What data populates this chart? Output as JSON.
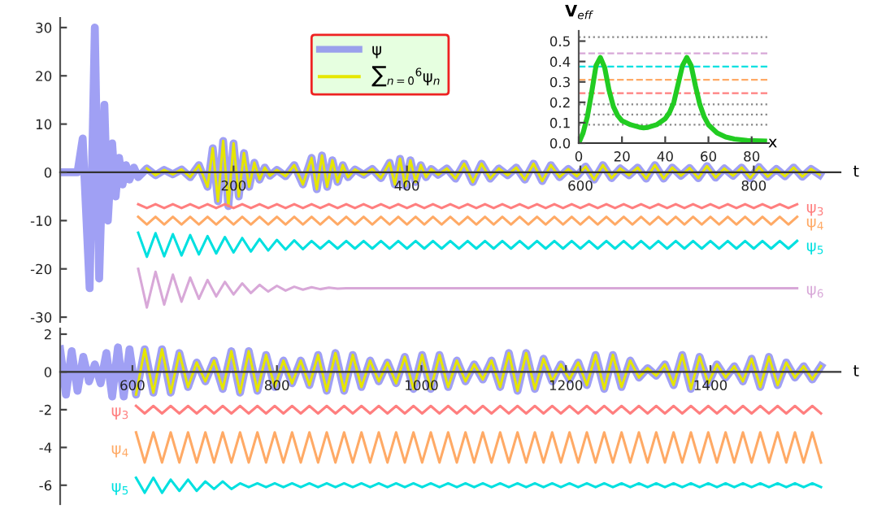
{
  "chart_data": [
    {
      "type": "line",
      "xlabel": "t",
      "xlim": [
        0,
        900
      ],
      "ylim": [
        -31,
        32
      ],
      "xticks": [
        200,
        400,
        600,
        800
      ],
      "yticks": [
        -30,
        -20,
        -10,
        0,
        10,
        20,
        30
      ],
      "legend": "top",
      "series": [
        {
          "name": "ψ",
          "color": "#8080f0",
          "x": [
            0,
            20,
            26,
            34,
            40,
            45,
            51,
            55,
            60,
            64,
            68,
            72,
            76,
            80,
            85,
            90,
            100,
            110,
            120,
            130,
            140,
            150,
            160,
            170,
            176,
            182,
            188,
            194,
            200,
            206,
            212,
            218,
            224,
            230,
            236,
            242,
            250,
            260,
            270,
            280,
            290,
            296,
            302,
            308,
            314,
            320,
            326,
            332,
            340,
            350,
            360,
            370,
            380,
            386,
            392,
            398,
            404,
            410,
            416,
            422,
            428,
            436,
            446,
            456,
            466,
            476,
            486,
            496,
            506,
            516,
            526,
            536,
            546,
            556,
            566,
            576,
            586,
            596,
            606,
            616,
            626,
            636,
            646,
            656,
            666,
            676,
            686,
            696,
            706,
            716,
            726,
            736,
            746,
            756,
            766,
            776,
            786,
            796,
            806,
            816,
            826,
            836,
            846,
            856,
            866,
            876
          ],
          "values": [
            0,
            0,
            7,
            -24,
            30,
            -22,
            14,
            -10,
            6,
            -5,
            3,
            -2.5,
            1.5,
            -1.5,
            1,
            -1,
            0.8,
            -0.6,
            0.5,
            -0.4,
            0.6,
            -1,
            1.5,
            -3,
            5,
            -6,
            6.5,
            -7,
            6,
            -5,
            4,
            -3,
            2,
            -1.5,
            1,
            -0.7,
            0.5,
            -0.8,
            1.5,
            -2.5,
            3,
            -3.5,
            3.5,
            -3,
            2.5,
            -2,
            1.5,
            -1,
            0.6,
            -0.5,
            0.7,
            -1.2,
            2,
            -2.5,
            2.8,
            -2.8,
            2.5,
            -2,
            1.5,
            -1,
            0.7,
            -0.5,
            0.8,
            -1.3,
            1.8,
            -2,
            1.8,
            -1.3,
            0.8,
            -0.6,
            1,
            -1.5,
            1.8,
            -1.8,
            1.5,
            -1,
            0.7,
            -0.8,
            1.2,
            -1.5,
            1.5,
            -1.2,
            0.8,
            -0.6,
            1,
            -1.3,
            1.5,
            -1.3,
            1,
            -0.7,
            0.9,
            -1.2,
            1.3,
            -1.1,
            0.8,
            -0.7,
            1,
            -1.2,
            1.1,
            -0.9,
            0.7,
            -0.8,
            1,
            -0.9,
            0.7,
            -0.5
          ]
        },
        {
          "name": "∑$_{n=0}$$^{6}$ψ$_{n}$",
          "color": "#e6e600",
          "x": [
            100,
            110,
            120,
            130,
            140,
            150,
            160,
            170,
            176,
            182,
            188,
            194,
            200,
            206,
            212,
            218,
            224,
            230,
            236,
            242,
            250,
            260,
            270,
            280,
            290,
            296,
            302,
            308,
            314,
            320,
            326,
            332,
            340,
            350,
            360,
            370,
            380,
            386,
            392,
            398,
            404,
            410,
            416,
            422,
            428,
            436,
            446,
            456,
            466,
            476,
            486,
            496,
            506,
            516,
            526,
            536,
            546,
            556,
            566,
            576,
            586,
            596,
            606,
            616,
            626,
            636,
            646,
            656,
            666,
            676,
            686,
            696,
            706,
            716,
            726,
            736,
            746,
            756,
            766,
            776,
            786,
            796,
            806,
            816,
            826,
            836,
            846,
            856,
            866,
            876
          ],
          "values": [
            0.8,
            -0.6,
            0.5,
            -0.4,
            0.6,
            -1,
            1.5,
            -3,
            5,
            -6,
            6.5,
            -7,
            6,
            -5,
            4,
            -3,
            2,
            -1.5,
            1,
            -0.7,
            0.5,
            -0.8,
            1.5,
            -2.5,
            3,
            -3.5,
            3.5,
            -3,
            2.5,
            -2,
            1.5,
            -1,
            0.6,
            -0.5,
            0.7,
            -1.2,
            2,
            -2.5,
            2.8,
            -2.8,
            2.5,
            -2,
            1.5,
            -1,
            0.7,
            -0.5,
            0.8,
            -1.3,
            1.8,
            -2,
            1.8,
            -1.3,
            0.8,
            -0.6,
            1,
            -1.5,
            1.8,
            -1.8,
            1.5,
            -1,
            0.7,
            -0.8,
            1.2,
            -1.5,
            1.5,
            -1.2,
            0.8,
            -0.6,
            1,
            -1.3,
            1.5,
            -1.3,
            1,
            -0.7,
            0.9,
            -1.2,
            1.3,
            -1.1,
            0.8,
            -0.7,
            1,
            -1.2,
            1.1,
            -0.9,
            0.7,
            -0.8,
            1,
            -0.9,
            0.7,
            -0.5
          ]
        },
        {
          "name": "ψ$_{3}$",
          "color": "#ff7f7f",
          "x": [
            90,
            100,
            110,
            120,
            130,
            140,
            150,
            160,
            170,
            180,
            190,
            200,
            210,
            220,
            230,
            240,
            250,
            260,
            270,
            280,
            290,
            300,
            310,
            320,
            330,
            340,
            350,
            360,
            370,
            380,
            390,
            400,
            410,
            420,
            430,
            440,
            450,
            460,
            470,
            480,
            490,
            500,
            510,
            520,
            530,
            540,
            550,
            560,
            570,
            580,
            590,
            600,
            610,
            620,
            630,
            640,
            650,
            660,
            670,
            680,
            690,
            700,
            710,
            720,
            730,
            740,
            750,
            760,
            770,
            780,
            790,
            800,
            810,
            820,
            830,
            840,
            850
          ],
          "values": [
            -6.6,
            -7.4,
            -6.6,
            -7.4,
            -6.6,
            -7.4,
            -6.6,
            -7.4,
            -6.6,
            -7.4,
            -6.6,
            -7.4,
            -6.6,
            -7.4,
            -6.6,
            -7.4,
            -6.6,
            -7.4,
            -6.6,
            -7.4,
            -6.6,
            -7.4,
            -6.6,
            -7.4,
            -6.6,
            -7.4,
            -6.6,
            -7.4,
            -6.6,
            -7.4,
            -6.6,
            -7.4,
            -6.6,
            -7.4,
            -6.6,
            -7.4,
            -6.6,
            -7.4,
            -6.6,
            -7.4,
            -6.6,
            -7.4,
            -6.6,
            -7.4,
            -6.6,
            -7.4,
            -6.6,
            -7.4,
            -6.6,
            -7.4,
            -6.6,
            -7.4,
            -6.6,
            -7.4,
            -6.6,
            -7.4,
            -6.6,
            -7.4,
            -6.6,
            -7.4,
            -6.6,
            -7.4,
            -6.6,
            -7.4,
            -6.6,
            -7.4,
            -6.6,
            -7.4,
            -6.6,
            -7.4,
            -6.6,
            -7.4,
            -6.6,
            -7.4,
            -6.6,
            -7.4,
            -6.6
          ]
        },
        {
          "name": "ψ$_{4}$",
          "color": "#ffaa66",
          "x": [
            90,
            100,
            110,
            120,
            130,
            140,
            150,
            160,
            170,
            180,
            190,
            200,
            210,
            220,
            230,
            240,
            250,
            260,
            270,
            280,
            290,
            300,
            310,
            320,
            330,
            340,
            350,
            360,
            370,
            380,
            390,
            400,
            410,
            420,
            430,
            440,
            450,
            460,
            470,
            480,
            490,
            500,
            510,
            520,
            530,
            540,
            550,
            560,
            570,
            580,
            590,
            600,
            610,
            620,
            630,
            640,
            650,
            660,
            670,
            680,
            690,
            700,
            710,
            720,
            730,
            740,
            750,
            760,
            770,
            780,
            790,
            800,
            810,
            820,
            830,
            840,
            850
          ],
          "values": [
            -9.2,
            -10.8,
            -9.2,
            -10.8,
            -9.2,
            -10.8,
            -9.2,
            -10.8,
            -9.2,
            -10.8,
            -9.2,
            -10.8,
            -9.2,
            -10.8,
            -9.2,
            -10.8,
            -9.2,
            -10.8,
            -9.2,
            -10.8,
            -9.2,
            -10.8,
            -9.2,
            -10.8,
            -9.2,
            -10.8,
            -9.2,
            -10.8,
            -9.2,
            -10.8,
            -9.2,
            -10.8,
            -9.2,
            -10.8,
            -9.2,
            -10.8,
            -9.2,
            -10.8,
            -9.2,
            -10.8,
            -9.2,
            -10.8,
            -9.2,
            -10.8,
            -9.2,
            -10.8,
            -9.2,
            -10.8,
            -9.2,
            -10.8,
            -9.2,
            -10.8,
            -9.2,
            -10.8,
            -9.2,
            -10.8,
            -9.2,
            -10.8,
            -9.2,
            -10.8,
            -9.2,
            -10.8,
            -9.2,
            -10.8,
            -9.2,
            -10.8,
            -9.2,
            -10.8,
            -9.2,
            -10.8,
            -9.2,
            -10.8,
            -9.2,
            -10.8,
            -9.2,
            -10.8,
            -9.2
          ]
        },
        {
          "name": "ψ$_{5}$",
          "color": "#00e0e0",
          "x": [
            90,
            100,
            110,
            120,
            130,
            140,
            150,
            160,
            170,
            180,
            190,
            200,
            210,
            220,
            230,
            240,
            250,
            260,
            270,
            280,
            290,
            300,
            310,
            320,
            330,
            340,
            350,
            360,
            370,
            380,
            390,
            400,
            410,
            420,
            430,
            440,
            450,
            460,
            470,
            480,
            490,
            500,
            510,
            520,
            530,
            540,
            550,
            560,
            570,
            580,
            590,
            600,
            610,
            620,
            630,
            640,
            650,
            660,
            670,
            680,
            690,
            700,
            710,
            720,
            730,
            740,
            750,
            760,
            770,
            780,
            790,
            800,
            810,
            820,
            830,
            840,
            850
          ],
          "values": [
            -12.5,
            -17.5,
            -12.6,
            -17.4,
            -12.8,
            -17.2,
            -13,
            -17,
            -13.2,
            -16.8,
            -13.4,
            -16.6,
            -13.6,
            -16.4,
            -13.8,
            -16.2,
            -14,
            -16,
            -14.1,
            -15.9,
            -14.2,
            -15.8,
            -14.2,
            -15.8,
            -14.2,
            -15.8,
            -14.2,
            -15.8,
            -14.2,
            -15.8,
            -14.2,
            -15.8,
            -14.2,
            -15.8,
            -14.2,
            -15.8,
            -14.2,
            -15.8,
            -14.2,
            -15.8,
            -14.2,
            -15.8,
            -14.2,
            -15.8,
            -14.2,
            -15.8,
            -14.2,
            -15.8,
            -14.2,
            -15.8,
            -14.2,
            -15.8,
            -14.2,
            -15.8,
            -14.2,
            -15.8,
            -14.2,
            -15.8,
            -14.2,
            -15.8,
            -14.2,
            -15.8,
            -14.2,
            -15.8,
            -14.2,
            -15.8,
            -14.2,
            -15.8,
            -14.2,
            -15.8,
            -14.2,
            -15.8,
            -14.2,
            -15.8,
            -14.2,
            -15.8,
            -14.2
          ]
        },
        {
          "name": "ψ$_{6}$",
          "color": "#d8a8d8",
          "x": [
            90,
            100,
            110,
            120,
            130,
            140,
            150,
            160,
            170,
            180,
            190,
            200,
            210,
            220,
            230,
            240,
            250,
            260,
            270,
            280,
            290,
            300,
            310,
            320,
            330,
            340,
            350,
            360,
            370,
            380,
            390,
            400,
            410,
            420,
            430,
            440,
            450,
            460,
            470,
            480,
            490,
            500,
            510,
            520,
            530,
            540,
            550,
            560,
            570,
            580,
            590,
            600,
            610,
            620,
            630,
            640,
            650,
            660,
            670,
            680,
            690,
            700,
            710,
            720,
            730,
            740,
            750,
            760,
            770,
            780,
            790,
            800,
            810,
            820,
            830,
            840,
            850
          ],
          "values": [
            -20,
            -28,
            -20.6,
            -27.4,
            -21.2,
            -26.8,
            -21.8,
            -26.2,
            -22.3,
            -25.7,
            -22.7,
            -25.3,
            -23,
            -25,
            -23.3,
            -24.7,
            -23.5,
            -24.5,
            -23.7,
            -24.3,
            -23.8,
            -24.2,
            -23.9,
            -24.1,
            -24,
            -24,
            -24,
            -24,
            -24,
            -24,
            -24,
            -24,
            -24,
            -24,
            -24,
            -24,
            -24,
            -24,
            -24,
            -24,
            -24,
            -24,
            -24,
            -24,
            -24,
            -24,
            -24,
            -24,
            -24,
            -24,
            -24,
            -24,
            -24,
            -24,
            -24,
            -24,
            -24,
            -24,
            -24,
            -24,
            -24,
            -24,
            -24,
            -24,
            -24,
            -24,
            -24,
            -24,
            -24,
            -24,
            -24,
            -24,
            -24,
            -24,
            -24,
            -24,
            -24
          ]
        }
      ]
    },
    {
      "type": "line",
      "xlabel": "x",
      "ylabel": "V$_{eff}$",
      "xlim": [
        0,
        88
      ],
      "ylim": [
        0,
        0.55
      ],
      "xticks": [
        0,
        20,
        40,
        60,
        80
      ],
      "yticks": [
        {
          "value": 0,
          "label": "0.0"
        },
        0.1,
        0.2,
        0.3,
        0.4,
        0.5
      ],
      "ref_lines": [
        {
          "axis": "y",
          "value": 0.09,
          "color": "#888888",
          "line_style": "dotted"
        },
        {
          "axis": "y",
          "value": 0.14,
          "color": "#888888",
          "line_style": "dotted"
        },
        {
          "axis": "y",
          "value": 0.19,
          "color": "#888888",
          "line_style": "dotted"
        },
        {
          "axis": "y",
          "value": 0.52,
          "color": "#888888",
          "line_style": "dotted"
        },
        {
          "axis": "y",
          "value": 0.245,
          "color": "#ff7f7f",
          "line_style": "dashed"
        },
        {
          "axis": "y",
          "value": 0.31,
          "color": "#ffaa66",
          "line_style": "dashed"
        },
        {
          "axis": "y",
          "value": 0.375,
          "color": "#00e0e0",
          "line_style": "dashed"
        },
        {
          "axis": "y",
          "value": 0.44,
          "color": "#d8a8d8",
          "line_style": "dashed"
        }
      ],
      "series": [
        {
          "color": "#22cc22",
          "x": [
            0,
            2,
            4,
            6,
            8,
            10,
            12,
            14,
            16,
            18,
            20,
            24,
            28,
            30,
            32,
            36,
            40,
            42,
            44,
            46,
            48,
            50,
            52,
            54,
            56,
            58,
            60,
            64,
            68,
            72,
            78,
            86
          ],
          "values": [
            0,
            0.05,
            0.13,
            0.25,
            0.38,
            0.42,
            0.37,
            0.26,
            0.18,
            0.135,
            0.11,
            0.09,
            0.078,
            0.075,
            0.077,
            0.09,
            0.12,
            0.15,
            0.2,
            0.29,
            0.38,
            0.42,
            0.38,
            0.28,
            0.19,
            0.13,
            0.09,
            0.05,
            0.03,
            0.02,
            0.013,
            0.01
          ]
        }
      ]
    },
    {
      "type": "line",
      "xlabel": "t",
      "xlim": [
        500,
        1580
      ],
      "ylim": [
        -7,
        2.3
      ],
      "xticks": [
        600,
        800,
        1000,
        1200,
        1400
      ],
      "yticks": [
        -6,
        -4,
        -2,
        0,
        2
      ],
      "series": [
        {
          "color": "#8080f0",
          "x": [
            500,
            508,
            516,
            524,
            532,
            540,
            548,
            556,
            564,
            572,
            580,
            588,
            596,
            605,
            617,
            629,
            641,
            653,
            665,
            677,
            689,
            701,
            713,
            725,
            737,
            749,
            761,
            773,
            785,
            797,
            809,
            821,
            833,
            845,
            857,
            869,
            881,
            893,
            905,
            917,
            929,
            941,
            953,
            965,
            977,
            989,
            1001,
            1013,
            1025,
            1037,
            1049,
            1061,
            1073,
            1085,
            1097,
            1109,
            1121,
            1133,
            1145,
            1157,
            1169,
            1181,
            1193,
            1205,
            1217,
            1229,
            1241,
            1253,
            1265,
            1277,
            1289,
            1301,
            1313,
            1325,
            1337,
            1349,
            1361,
            1373,
            1385,
            1397,
            1409,
            1421,
            1433,
            1445,
            1457,
            1469,
            1481,
            1493,
            1505,
            1517,
            1529,
            1541,
            1553
          ],
          "values": [
            1.2,
            -1.2,
            1.1,
            -1,
            0.8,
            -0.5,
            0.4,
            -0.6,
            1,
            -1.3,
            1.3,
            -1.3,
            1.2,
            -1.2,
            1.2,
            -1.1,
            1.2,
            -1.1,
            1,
            -0.8,
            0.5,
            -0.5,
            0.6,
            -0.9,
            1.1,
            -1.1,
            1.1,
            -1,
            0.9,
            -0.8,
            0.6,
            -0.6,
            0.6,
            -0.7,
            0.9,
            -1,
            1,
            -1,
            0.9,
            -0.8,
            0.6,
            -0.5,
            0.5,
            -0.6,
            0.8,
            -0.9,
            0.9,
            -0.9,
            0.9,
            -0.8,
            0.6,
            -0.5,
            0.4,
            -0.4,
            0.6,
            -0.8,
            1,
            -1,
            1,
            -0.9,
            0.7,
            -0.5,
            0.4,
            -0.4,
            0.5,
            -0.7,
            0.9,
            -0.9,
            0.9,
            -0.8,
            0.6,
            -0.3,
            0.2,
            -0.2,
            0.4,
            -0.7,
            0.9,
            -0.9,
            0.8,
            -0.6,
            0.4,
            -0.3,
            0.3,
            -0.5,
            0.7,
            -0.8,
            0.8,
            -0.7,
            0.5,
            -0.3,
            0.3,
            -0.4,
            0.3
          ]
        },
        {
          "color": "#e6e600",
          "x": [
            605,
            617,
            629,
            641,
            653,
            665,
            677,
            689,
            701,
            713,
            725,
            737,
            749,
            761,
            773,
            785,
            797,
            809,
            821,
            833,
            845,
            857,
            869,
            881,
            893,
            905,
            917,
            929,
            941,
            953,
            965,
            977,
            989,
            1001,
            1013,
            1025,
            1037,
            1049,
            1061,
            1073,
            1085,
            1097,
            1109,
            1121,
            1133,
            1145,
            1157,
            1169,
            1181,
            1193,
            1205,
            1217,
            1229,
            1241,
            1253,
            1265,
            1277,
            1289,
            1301,
            1313,
            1325,
            1337,
            1349,
            1361,
            1373,
            1385,
            1397,
            1409,
            1421,
            1433,
            1445,
            1457,
            1469,
            1481,
            1493,
            1505,
            1517,
            1529,
            1541,
            1553
          ],
          "values": [
            -1.2,
            1.2,
            -1.1,
            1.2,
            -1.1,
            1,
            -0.8,
            0.5,
            -0.5,
            0.6,
            -0.9,
            1.1,
            -1.1,
            1.1,
            -1,
            0.9,
            -0.8,
            0.6,
            -0.6,
            0.6,
            -0.7,
            0.9,
            -1,
            1,
            -1,
            0.9,
            -0.8,
            0.6,
            -0.5,
            0.5,
            -0.6,
            0.8,
            -0.9,
            0.9,
            -0.9,
            0.9,
            -0.8,
            0.6,
            -0.5,
            0.4,
            -0.4,
            0.6,
            -0.8,
            1,
            -1,
            1,
            -0.9,
            0.7,
            -0.5,
            0.4,
            -0.4,
            0.5,
            -0.7,
            0.9,
            -0.9,
            0.9,
            -0.8,
            0.6,
            -0.3,
            0.2,
            -0.2,
            0.4,
            -0.7,
            0.9,
            -0.9,
            0.8,
            -0.6,
            0.4,
            -0.3,
            0.3,
            -0.5,
            0.7,
            -0.8,
            0.8,
            -0.7,
            0.5,
            -0.3,
            0.3,
            -0.4,
            0.3
          ]
        },
        {
          "name": "ψ$_{3}$",
          "color": "#ff7f7f",
          "x": [
            605,
            617,
            629,
            641,
            653,
            665,
            677,
            689,
            701,
            713,
            725,
            737,
            749,
            761,
            773,
            785,
            797,
            809,
            821,
            833,
            845,
            857,
            869,
            881,
            893,
            905,
            917,
            929,
            941,
            953,
            965,
            977,
            989,
            1001,
            1013,
            1025,
            1037,
            1049,
            1061,
            1073,
            1085,
            1097,
            1109,
            1121,
            1133,
            1145,
            1157,
            1169,
            1181,
            1193,
            1205,
            1217,
            1229,
            1241,
            1253,
            1265,
            1277,
            1289,
            1301,
            1313,
            1325,
            1337,
            1349,
            1361,
            1373,
            1385,
            1397,
            1409,
            1421,
            1433,
            1445,
            1457,
            1469,
            1481,
            1493,
            1505,
            1517,
            1529,
            1541,
            1553
          ],
          "values": [
            -1.8,
            -2.2,
            -1.8,
            -2.2,
            -1.8,
            -2.2,
            -1.8,
            -2.2,
            -1.8,
            -2.2,
            -1.8,
            -2.2,
            -1.8,
            -2.2,
            -1.8,
            -2.2,
            -1.8,
            -2.2,
            -1.8,
            -2.2,
            -1.8,
            -2.2,
            -1.8,
            -2.2,
            -1.8,
            -2.2,
            -1.8,
            -2.2,
            -1.8,
            -2.2,
            -1.8,
            -2.2,
            -1.8,
            -2.2,
            -1.8,
            -2.2,
            -1.8,
            -2.2,
            -1.8,
            -2.2,
            -1.8,
            -2.2,
            -1.8,
            -2.2,
            -1.8,
            -2.2,
            -1.8,
            -2.2,
            -1.8,
            -2.2,
            -1.8,
            -2.2,
            -1.8,
            -2.2,
            -1.8,
            -2.2,
            -1.8,
            -2.2,
            -1.8,
            -2.2,
            -1.8,
            -2.2,
            -1.8,
            -2.2,
            -1.8,
            -2.2,
            -1.8,
            -2.2,
            -1.8,
            -2.2,
            -1.8,
            -2.2,
            -1.8,
            -2.2,
            -1.8,
            -2.2,
            -1.8,
            -2.2,
            -1.8,
            -2.2
          ]
        },
        {
          "name": "ψ$_{4}$",
          "color": "#ffaa66",
          "x": [
            605,
            617,
            629,
            641,
            653,
            665,
            677,
            689,
            701,
            713,
            725,
            737,
            749,
            761,
            773,
            785,
            797,
            809,
            821,
            833,
            845,
            857,
            869,
            881,
            893,
            905,
            917,
            929,
            941,
            953,
            965,
            977,
            989,
            1001,
            1013,
            1025,
            1037,
            1049,
            1061,
            1073,
            1085,
            1097,
            1109,
            1121,
            1133,
            1145,
            1157,
            1169,
            1181,
            1193,
            1205,
            1217,
            1229,
            1241,
            1253,
            1265,
            1277,
            1289,
            1301,
            1313,
            1325,
            1337,
            1349,
            1361,
            1373,
            1385,
            1397,
            1409,
            1421,
            1433,
            1445,
            1457,
            1469,
            1481,
            1493,
            1505,
            1517,
            1529,
            1541,
            1553
          ],
          "values": [
            -3.2,
            -4.8,
            -3.2,
            -4.8,
            -3.2,
            -4.8,
            -3.2,
            -4.8,
            -3.2,
            -4.8,
            -3.2,
            -4.8,
            -3.2,
            -4.8,
            -3.2,
            -4.8,
            -3.2,
            -4.8,
            -3.2,
            -4.8,
            -3.2,
            -4.8,
            -3.2,
            -4.8,
            -3.2,
            -4.8,
            -3.2,
            -4.8,
            -3.2,
            -4.8,
            -3.2,
            -4.8,
            -3.2,
            -4.8,
            -3.2,
            -4.8,
            -3.2,
            -4.8,
            -3.2,
            -4.8,
            -3.2,
            -4.8,
            -3.2,
            -4.8,
            -3.2,
            -4.8,
            -3.2,
            -4.8,
            -3.2,
            -4.8,
            -3.2,
            -4.8,
            -3.2,
            -4.8,
            -3.2,
            -4.8,
            -3.2,
            -4.8,
            -3.2,
            -4.8,
            -3.2,
            -4.8,
            -3.2,
            -4.8,
            -3.2,
            -4.8,
            -3.2,
            -4.8,
            -3.2,
            -4.8,
            -3.2,
            -4.8,
            -3.2,
            -4.8,
            -3.2,
            -4.8,
            -3.2,
            -4.8,
            -3.2,
            -4.8
          ]
        },
        {
          "name": "ψ$_{5}$",
          "color": "#00e0e0",
          "x": [
            605,
            617,
            629,
            641,
            653,
            665,
            677,
            689,
            701,
            713,
            725,
            737,
            749,
            761,
            773,
            785,
            797,
            809,
            821,
            833,
            845,
            857,
            869,
            881,
            893,
            905,
            917,
            929,
            941,
            953,
            965,
            977,
            989,
            1001,
            1013,
            1025,
            1037,
            1049,
            1061,
            1073,
            1085,
            1097,
            1109,
            1121,
            1133,
            1145,
            1157,
            1169,
            1181,
            1193,
            1205,
            1217,
            1229,
            1241,
            1253,
            1265,
            1277,
            1289,
            1301,
            1313,
            1325,
            1337,
            1349,
            1361,
            1373,
            1385,
            1397,
            1409,
            1421,
            1433,
            1445,
            1457,
            1469,
            1481,
            1493,
            1505,
            1517,
            1529,
            1541,
            1553
          ],
          "values": [
            -5.6,
            -6.4,
            -5.6,
            -6.4,
            -5.7,
            -6.3,
            -5.7,
            -6.3,
            -5.8,
            -6.2,
            -5.8,
            -6.2,
            -5.9,
            -6.1,
            -5.9,
            -6.1,
            -5.9,
            -6.1,
            -5.9,
            -6.1,
            -5.9,
            -6.1,
            -5.9,
            -6.1,
            -5.9,
            -6.1,
            -5.9,
            -6.1,
            -5.9,
            -6.1,
            -5.9,
            -6.1,
            -5.9,
            -6.1,
            -5.9,
            -6.1,
            -5.9,
            -6.1,
            -5.9,
            -6.1,
            -5.9,
            -6.1,
            -5.9,
            -6.1,
            -5.9,
            -6.1,
            -5.9,
            -6.1,
            -5.9,
            -6.1,
            -5.9,
            -6.1,
            -5.9,
            -6.1,
            -5.9,
            -6.1,
            -5.9,
            -6.1,
            -5.9,
            -6.1,
            -5.9,
            -6.1,
            -5.9,
            -6.1,
            -5.9,
            -6.1,
            -5.9,
            -6.1,
            -5.9,
            -6.1,
            -5.9,
            -6.1,
            -5.9,
            -6.1,
            -5.9,
            -6.1,
            -5.9,
            -6.1,
            -5.9,
            -6.1
          ]
        }
      ]
    }
  ]
}
